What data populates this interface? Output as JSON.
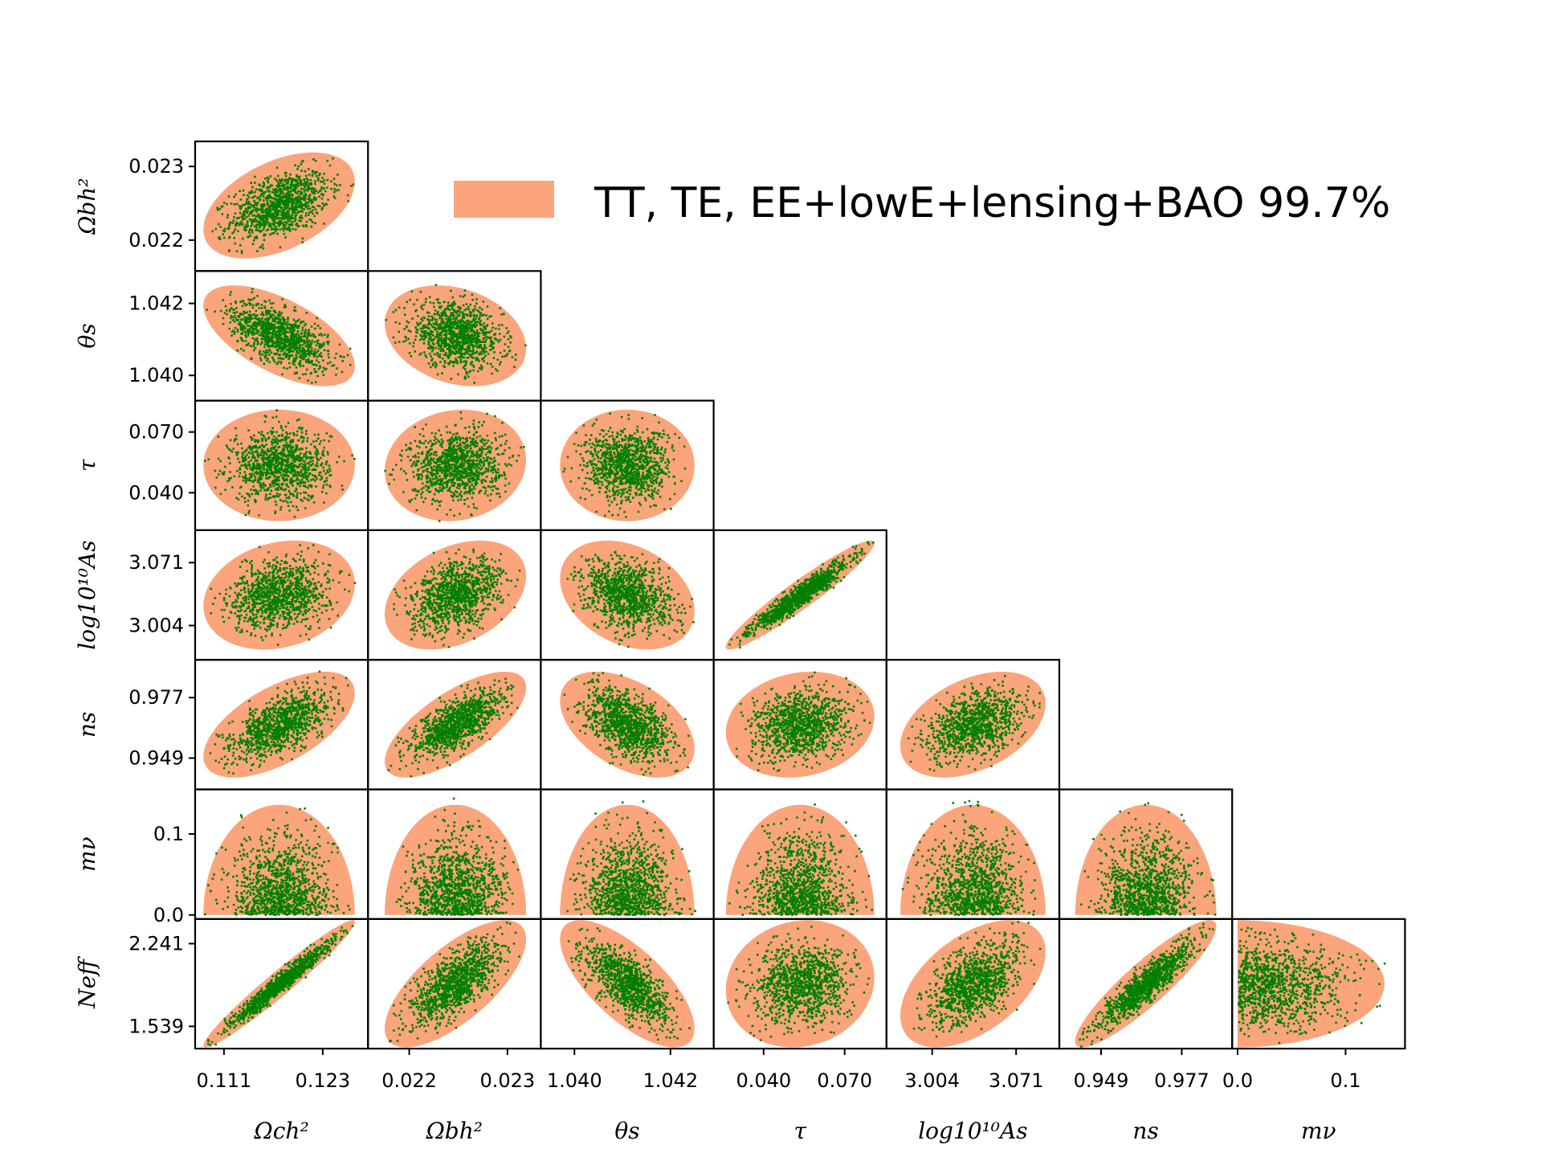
{
  "chart_data": {
    "type": "scatter",
    "title": "",
    "matrix": "corner-plot",
    "colors": {
      "contour": "#fca47c",
      "points": "#008000",
      "frame": "#000000"
    },
    "legend": {
      "label": "TT, TE, EE+lowE+lensing+BAO 99.7%",
      "placement": "top-right"
    },
    "params": [
      {
        "key": "omch2",
        "label": "Ωch²",
        "ticks": [
          0.111,
          0.123
        ],
        "tick_labels": [
          "0.111",
          "0.123"
        ],
        "range": [
          0.1075,
          0.1285
        ],
        "center": 0.1177,
        "halfwidth": 0.0092,
        "cl": "0.111"
      },
      {
        "key": "ombh2",
        "label": "Ωbh²",
        "ticks": [
          0.022,
          0.023
        ],
        "tick_labels": [
          "0.022",
          "0.023"
        ],
        "range": [
          0.02158,
          0.02334
        ],
        "center": 0.02247,
        "halfwidth": 0.00072
      },
      {
        "key": "theta",
        "label": "θs",
        "ticks": [
          1.04,
          1.042
        ],
        "tick_labels": [
          "1.040",
          "1.042"
        ],
        "range": [
          1.0393,
          1.0429
        ],
        "center": 1.0411,
        "halfwidth": 0.0014
      },
      {
        "key": "tau",
        "label": "τ",
        "ticks": [
          0.04,
          0.07
        ],
        "tick_labels": [
          "0.040",
          "0.070"
        ],
        "range": [
          0.0215,
          0.0855
        ],
        "center": 0.0535,
        "halfwidth": 0.0275
      },
      {
        "key": "logA",
        "label": "log10¹⁰As",
        "ticks": [
          3.004,
          3.071
        ],
        "tick_labels": [
          "3.004",
          "3.071"
        ],
        "range": [
          2.9675,
          3.1055
        ],
        "center": 3.0365,
        "halfwidth": 0.058
      },
      {
        "key": "ns",
        "label": "ns",
        "ticks": [
          0.949,
          0.977
        ],
        "tick_labels": [
          "0.949",
          "0.977"
        ],
        "range": [
          0.9345,
          0.9945
        ],
        "center": 0.9645,
        "halfwidth": 0.0245
      },
      {
        "key": "mnu",
        "label": "mν",
        "ticks": [
          0.0,
          0.1
        ],
        "tick_labels": [
          "0.0",
          "0.1"
        ],
        "range": [
          -0.005,
          0.155
        ],
        "center": 0.0,
        "halfwidth": 0.136
      },
      {
        "key": "neff",
        "label": "Neff",
        "ticks": [
          1.539,
          2.241
        ],
        "tick_labels": [
          "1.539",
          "2.241"
        ],
        "range": [
          1.35,
          2.45
        ],
        "center": 1.9,
        "halfwidth": 0.54
      }
    ],
    "correlations": [
      {
        "x": "omch2",
        "y": "ombh2",
        "rho": 0.45
      },
      {
        "x": "omch2",
        "y": "theta",
        "rho": -0.6
      },
      {
        "x": "ombh2",
        "y": "theta",
        "rho": -0.25
      },
      {
        "x": "omch2",
        "y": "tau",
        "rho": 0.0
      },
      {
        "x": "ombh2",
        "y": "tau",
        "rho": 0.1
      },
      {
        "x": "theta",
        "y": "tau",
        "rho": 0.0
      },
      {
        "x": "omch2",
        "y": "logA",
        "rho": 0.2
      },
      {
        "x": "ombh2",
        "y": "logA",
        "rho": 0.35
      },
      {
        "x": "theta",
        "y": "logA",
        "rho": -0.3
      },
      {
        "x": "tau",
        "y": "logA",
        "rho": 0.95
      },
      {
        "x": "omch2",
        "y": "ns",
        "rho": 0.6
      },
      {
        "x": "ombh2",
        "y": "ns",
        "rho": 0.7
      },
      {
        "x": "theta",
        "y": "ns",
        "rho": -0.45
      },
      {
        "x": "tau",
        "y": "ns",
        "rho": 0.15
      },
      {
        "x": "logA",
        "y": "ns",
        "rho": 0.4
      },
      {
        "x": "omch2",
        "y": "neff",
        "rho": 0.97
      },
      {
        "x": "ombh2",
        "y": "neff",
        "rho": 0.7
      },
      {
        "x": "theta",
        "y": "neff",
        "rho": -0.7
      },
      {
        "x": "tau",
        "y": "neff",
        "rho": 0.1
      },
      {
        "x": "logA",
        "y": "neff",
        "rho": 0.5
      },
      {
        "x": "ns",
        "y": "neff",
        "rho": 0.9
      }
    ],
    "row_params": [
      "ombh2",
      "theta",
      "tau",
      "logA",
      "ns",
      "mnu",
      "neff"
    ],
    "col_params": [
      "omch2",
      "ombh2",
      "theta",
      "tau",
      "logA",
      "ns",
      "mnu"
    ]
  }
}
